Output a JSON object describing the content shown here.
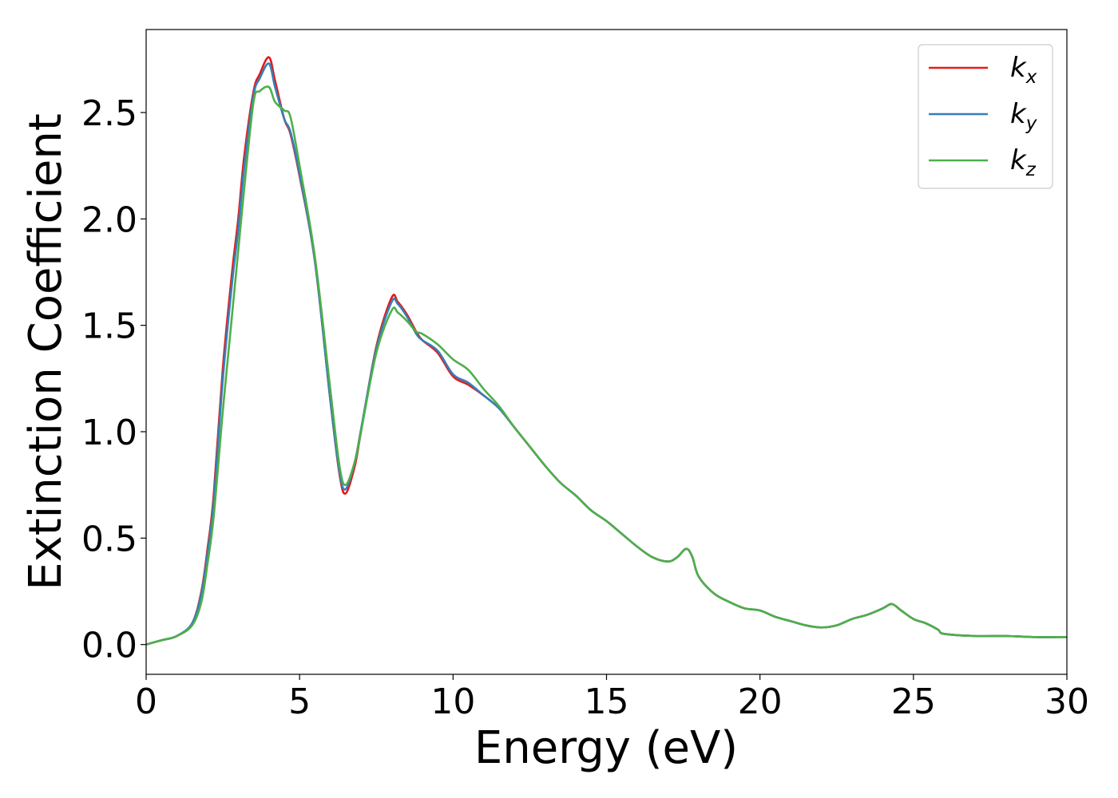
{
  "chart_data": {
    "type": "line",
    "title": "",
    "xlabel": "Energy (eV)",
    "ylabel": "Extinction Coefficient",
    "xlim": [
      0,
      30
    ],
    "ylim": [
      -0.14,
      2.89
    ],
    "xticks": [
      0,
      5,
      10,
      15,
      20,
      25,
      30
    ],
    "xtick_labels": [
      "0",
      "5",
      "10",
      "15",
      "20",
      "25",
      "30"
    ],
    "yticks": [
      0.0,
      0.5,
      1.0,
      1.5,
      2.0,
      2.5
    ],
    "ytick_labels": [
      "0.0",
      "0.5",
      "1.0",
      "1.5",
      "2.0",
      "2.5"
    ],
    "grid": false,
    "legend_position": "top-right",
    "x": [
      0,
      0.5,
      1,
      1.5,
      1.8,
      2.0,
      2.2,
      2.5,
      2.8,
      3.0,
      3.2,
      3.5,
      3.7,
      4.0,
      4.2,
      4.5,
      4.7,
      5.0,
      5.5,
      6.0,
      6.3,
      6.5,
      6.8,
      7.0,
      7.5,
      8.0,
      8.2,
      8.5,
      8.8,
      9.0,
      9.5,
      10.0,
      10.5,
      11.0,
      11.5,
      12.0,
      12.5,
      13.0,
      13.5,
      14.0,
      14.5,
      15.0,
      15.5,
      16.0,
      16.5,
      17.0,
      17.3,
      17.6,
      17.8,
      18.0,
      18.5,
      19.0,
      19.5,
      20.0,
      20.5,
      21.0,
      21.5,
      22.0,
      22.5,
      23.0,
      23.5,
      24.0,
      24.3,
      24.6,
      25.0,
      25.4,
      25.8,
      26.0,
      27.0,
      28.0,
      29.0,
      30.0
    ],
    "series": [
      {
        "name": "k_x",
        "color": "#e41a1c",
        "label_base": "k",
        "label_sub": "x",
        "values": [
          0.0,
          0.02,
          0.04,
          0.1,
          0.25,
          0.45,
          0.7,
          1.3,
          1.75,
          2.0,
          2.3,
          2.6,
          2.68,
          2.76,
          2.65,
          2.47,
          2.4,
          2.2,
          1.8,
          1.15,
          0.8,
          0.71,
          0.84,
          1.0,
          1.4,
          1.63,
          1.61,
          1.55,
          1.47,
          1.43,
          1.37,
          1.26,
          1.22,
          1.17,
          1.11,
          1.02,
          0.93,
          0.84,
          0.76,
          0.7,
          0.63,
          0.58,
          0.52,
          0.46,
          0.41,
          0.39,
          0.41,
          0.45,
          0.41,
          0.32,
          0.24,
          0.2,
          0.17,
          0.16,
          0.13,
          0.11,
          0.09,
          0.08,
          0.09,
          0.12,
          0.14,
          0.17,
          0.19,
          0.16,
          0.12,
          0.1,
          0.07,
          0.05,
          0.04,
          0.04,
          0.035,
          0.035
        ]
      },
      {
        "name": "k_y",
        "color": "#377eb8",
        "label_base": "k",
        "label_sub": "y",
        "values": [
          0.0,
          0.02,
          0.04,
          0.1,
          0.24,
          0.43,
          0.67,
          1.25,
          1.7,
          1.95,
          2.25,
          2.58,
          2.66,
          2.73,
          2.62,
          2.47,
          2.41,
          2.21,
          1.8,
          1.15,
          0.81,
          0.73,
          0.86,
          1.01,
          1.39,
          1.61,
          1.6,
          1.54,
          1.46,
          1.43,
          1.38,
          1.27,
          1.23,
          1.17,
          1.11,
          1.02,
          0.93,
          0.84,
          0.76,
          0.7,
          0.63,
          0.58,
          0.52,
          0.46,
          0.41,
          0.39,
          0.41,
          0.45,
          0.41,
          0.32,
          0.24,
          0.2,
          0.17,
          0.16,
          0.13,
          0.11,
          0.09,
          0.08,
          0.09,
          0.12,
          0.14,
          0.17,
          0.19,
          0.16,
          0.12,
          0.1,
          0.07,
          0.05,
          0.04,
          0.04,
          0.035,
          0.035
        ]
      },
      {
        "name": "k_z",
        "color": "#4daf4a",
        "label_base": "k",
        "label_sub": "z",
        "values": [
          0.0,
          0.02,
          0.04,
          0.09,
          0.2,
          0.38,
          0.6,
          1.1,
          1.55,
          1.85,
          2.15,
          2.55,
          2.6,
          2.62,
          2.55,
          2.51,
          2.48,
          2.25,
          1.82,
          1.2,
          0.84,
          0.75,
          0.86,
          1.0,
          1.37,
          1.57,
          1.56,
          1.52,
          1.47,
          1.46,
          1.41,
          1.34,
          1.29,
          1.2,
          1.12,
          1.02,
          0.93,
          0.84,
          0.76,
          0.7,
          0.63,
          0.58,
          0.52,
          0.46,
          0.41,
          0.39,
          0.41,
          0.45,
          0.41,
          0.32,
          0.24,
          0.2,
          0.17,
          0.16,
          0.13,
          0.11,
          0.09,
          0.08,
          0.09,
          0.12,
          0.14,
          0.17,
          0.19,
          0.16,
          0.12,
          0.1,
          0.07,
          0.05,
          0.04,
          0.04,
          0.035,
          0.035
        ]
      }
    ]
  }
}
